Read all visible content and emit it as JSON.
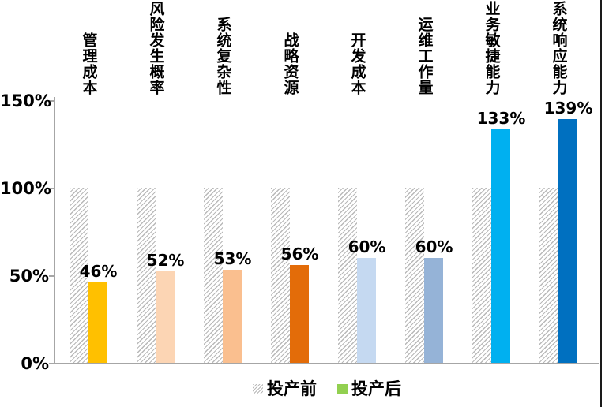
{
  "chart_data": {
    "type": "bar",
    "title": "",
    "categories": [
      "管理成本",
      "风险发生概率",
      "系统复杂性",
      "战略资源",
      "开发成本",
      "运维工作量",
      "业务敏捷能力",
      "系统响应能力"
    ],
    "series": [
      {
        "name": "投产前",
        "values": [
          100,
          100,
          100,
          100,
          100,
          100,
          100,
          100
        ],
        "style": "hatched",
        "hatch_color": "#b9b9b9"
      },
      {
        "name": "投产后",
        "values": [
          46,
          52,
          53,
          56,
          60,
          60,
          133,
          139
        ],
        "style": "solid",
        "bar_colors": [
          "#FFC000",
          "#FCD5B4",
          "#FABF8F",
          "#E36C09",
          "#C5D9F1",
          "#95B3D7",
          "#00B0F0",
          "#0070C0"
        ]
      }
    ],
    "value_labels": [
      "46%",
      "52%",
      "53%",
      "56%",
      "60%",
      "60%",
      "133%",
      "139%"
    ],
    "y_ticks": [
      {
        "label": "0%",
        "value": 0
      },
      {
        "label": "50%",
        "value": 50
      },
      {
        "label": "100%",
        "value": 100
      },
      {
        "label": "150%",
        "value": 150
      }
    ],
    "ylim": [
      0,
      150
    ],
    "grid": false,
    "legend": {
      "position": "bottom",
      "items": [
        {
          "label": "投产前",
          "swatch": "hatched",
          "color": "#b9b9b9"
        },
        {
          "label": "投产后",
          "swatch": "solid",
          "color": "#92D050"
        }
      ]
    },
    "axis_color": "#a6a6a6",
    "text_color": "#000000",
    "right_edge_border_color": "#1a1a1a"
  }
}
